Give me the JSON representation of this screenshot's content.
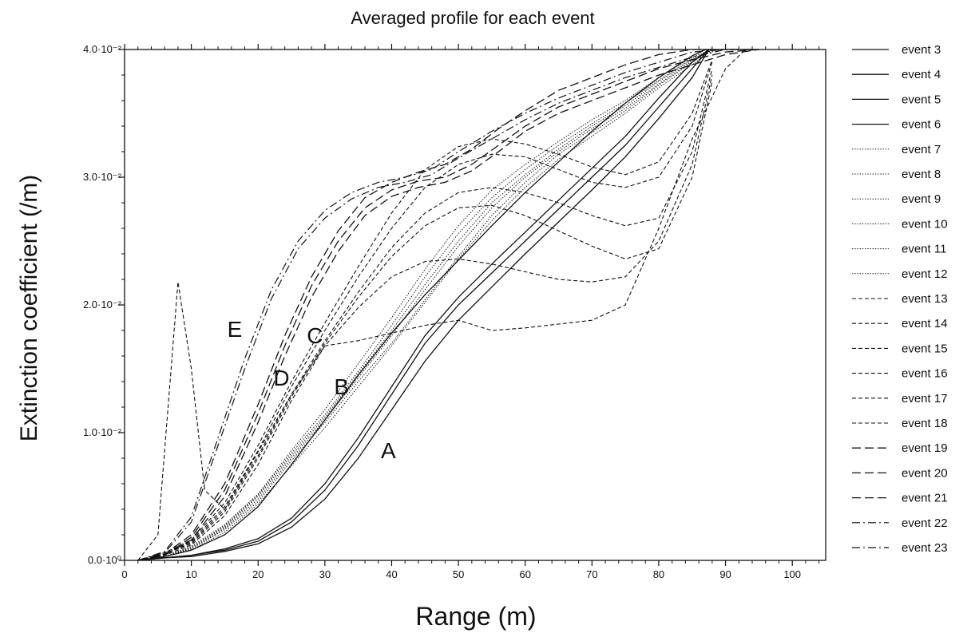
{
  "chart_data": {
    "type": "line",
    "title": "Averaged profile for each event",
    "xlabel": "Range (m)",
    "ylabel": "Extinction coefficient (/m)",
    "xlim": [
      0,
      105
    ],
    "ylim": [
      0,
      0.04
    ],
    "x_ticks": [
      0,
      10,
      20,
      30,
      40,
      50,
      60,
      70,
      80,
      90,
      100
    ],
    "x_tick_labels": [
      "0",
      "10",
      "20",
      "30",
      "40",
      "50",
      "60",
      "70",
      "80",
      "90",
      "100"
    ],
    "y_ticks": [
      0,
      0.01,
      0.02,
      0.03,
      0.04
    ],
    "y_tick_labels": [
      "0.0·10⁰",
      "1.0·10⁻²",
      "2.0·10⁻²",
      "3.0·10⁻²",
      "4.0·10⁻²"
    ],
    "grid": false,
    "legend_position": "right",
    "annotations": [
      {
        "text": "A",
        "x": 39.5,
        "y": 0.008
      },
      {
        "text": "B",
        "x": 32.5,
        "y": 0.013
      },
      {
        "text": "C",
        "x": 28.5,
        "y": 0.017
      },
      {
        "text": "D",
        "x": 23.5,
        "y": 0.0137
      },
      {
        "text": "E",
        "x": 16.5,
        "y": 0.0175
      }
    ],
    "series": [
      {
        "name": "event 3",
        "style": "solid",
        "x": [
          2,
          6,
          10,
          15,
          20,
          25,
          30,
          35,
          40,
          45,
          50,
          55,
          60,
          65,
          70,
          75,
          80,
          85,
          87.5
        ],
        "y": [
          0,
          0.0002,
          0.0004,
          0.0008,
          0.0015,
          0.003,
          0.0055,
          0.009,
          0.013,
          0.017,
          0.02,
          0.0225,
          0.025,
          0.0275,
          0.03,
          0.0325,
          0.0355,
          0.0385,
          0.04
        ]
      },
      {
        "name": "event 4",
        "style": "solid",
        "x": [
          2,
          6,
          10,
          15,
          20,
          25,
          30,
          35,
          40,
          45,
          50,
          55,
          60,
          65,
          70,
          75,
          80,
          85,
          87.5
        ],
        "y": [
          0,
          0.0002,
          0.0004,
          0.0009,
          0.0017,
          0.0033,
          0.006,
          0.0096,
          0.0136,
          0.0176,
          0.0206,
          0.0232,
          0.0257,
          0.0282,
          0.0307,
          0.0332,
          0.0362,
          0.039,
          0.04
        ]
      },
      {
        "name": "event 5",
        "style": "solid",
        "x": [
          2,
          6,
          10,
          15,
          20,
          25,
          30,
          35,
          40,
          45,
          50,
          55,
          60,
          65,
          70,
          75,
          80,
          85,
          87.5
        ],
        "y": [
          0,
          0.0002,
          0.0003,
          0.0007,
          0.0013,
          0.0026,
          0.0048,
          0.008,
          0.0118,
          0.0156,
          0.0188,
          0.0214,
          0.024,
          0.0265,
          0.029,
          0.0316,
          0.0346,
          0.0378,
          0.04
        ]
      },
      {
        "name": "event 6",
        "style": "solid",
        "x": [
          2,
          6,
          10,
          15,
          20,
          25,
          30,
          35,
          40,
          45,
          50,
          55,
          60,
          65,
          70,
          75,
          80,
          85,
          87
        ],
        "y": [
          0,
          0.0003,
          0.0008,
          0.002,
          0.0042,
          0.0075,
          0.011,
          0.0145,
          0.0178,
          0.0208,
          0.0235,
          0.0262,
          0.0288,
          0.0312,
          0.0336,
          0.0358,
          0.0378,
          0.0395,
          0.04
        ]
      },
      {
        "name": "event 7",
        "style": "dotted",
        "x": [
          2,
          6,
          10,
          15,
          20,
          25,
          30,
          35,
          40,
          45,
          50,
          55,
          60,
          65,
          70,
          75,
          80,
          85,
          88
        ],
        "y": [
          0,
          0.0003,
          0.0009,
          0.0024,
          0.0046,
          0.0078,
          0.0108,
          0.014,
          0.017,
          0.0204,
          0.0238,
          0.027,
          0.0296,
          0.0318,
          0.0335,
          0.0352,
          0.0372,
          0.039,
          0.04
        ]
      },
      {
        "name": "event 8",
        "style": "dotted",
        "x": [
          2,
          6,
          10,
          15,
          20,
          25,
          30,
          35,
          40,
          45,
          50,
          55,
          60,
          65,
          70,
          75,
          80,
          85,
          88
        ],
        "y": [
          0,
          0.0003,
          0.001,
          0.0026,
          0.005,
          0.0082,
          0.0112,
          0.0146,
          0.018,
          0.0216,
          0.025,
          0.028,
          0.0302,
          0.0322,
          0.034,
          0.0356,
          0.0375,
          0.0392,
          0.04
        ]
      },
      {
        "name": "event 9",
        "style": "dotted",
        "x": [
          2,
          6,
          10,
          15,
          20,
          25,
          30,
          35,
          40,
          45,
          50,
          55,
          60,
          65,
          70,
          75,
          80,
          85,
          88
        ],
        "y": [
          0,
          0.0003,
          0.0008,
          0.0022,
          0.0044,
          0.0074,
          0.0104,
          0.0136,
          0.0168,
          0.0202,
          0.0236,
          0.0266,
          0.0292,
          0.0314,
          0.0332,
          0.035,
          0.037,
          0.0388,
          0.04
        ]
      },
      {
        "name": "event 10",
        "style": "dotted",
        "x": [
          2,
          6,
          10,
          15,
          20,
          25,
          30,
          35,
          40,
          45,
          50,
          55,
          60,
          65,
          70,
          75,
          80,
          85,
          88
        ],
        "y": [
          0,
          0.0003,
          0.0011,
          0.0028,
          0.0052,
          0.0086,
          0.0118,
          0.0154,
          0.019,
          0.0228,
          0.0262,
          0.029,
          0.031,
          0.0328,
          0.0345,
          0.036,
          0.0378,
          0.0394,
          0.04
        ]
      },
      {
        "name": "event 11",
        "style": "dotted",
        "x": [
          2,
          6,
          10,
          15,
          20,
          25,
          30,
          35,
          40,
          45,
          50,
          55,
          60,
          65,
          70,
          75,
          80,
          85,
          88
        ],
        "y": [
          0,
          0.0003,
          0.0009,
          0.0025,
          0.0048,
          0.008,
          0.011,
          0.0143,
          0.0176,
          0.0212,
          0.0246,
          0.0276,
          0.03,
          0.032,
          0.0338,
          0.0354,
          0.0373,
          0.0391,
          0.04
        ]
      },
      {
        "name": "event 12",
        "style": "dotted",
        "x": [
          2,
          6,
          10,
          15,
          20,
          25,
          30,
          35,
          40,
          45,
          50,
          55,
          60,
          65,
          70,
          75,
          80,
          85,
          89
        ],
        "y": [
          0,
          0.0003,
          0.001,
          0.0027,
          0.0051,
          0.0084,
          0.0114,
          0.0148,
          0.0184,
          0.0222,
          0.0256,
          0.0284,
          0.0306,
          0.0325,
          0.0342,
          0.0358,
          0.0376,
          0.0393,
          0.04
        ]
      },
      {
        "name": "event 13",
        "style": "dashed",
        "x": [
          2,
          5,
          8,
          10,
          12,
          15,
          20,
          25,
          30,
          35,
          40,
          45,
          50,
          55,
          60,
          65,
          70,
          75,
          80,
          85,
          90,
          93
        ],
        "y": [
          0,
          0.002,
          0.0218,
          0.015,
          0.0055,
          0.004,
          0.0085,
          0.013,
          0.0168,
          0.0172,
          0.0178,
          0.0184,
          0.0188,
          0.018,
          0.0182,
          0.0185,
          0.0188,
          0.02,
          0.026,
          0.033,
          0.0385,
          0.04
        ]
      },
      {
        "name": "event 14",
        "style": "dashed",
        "x": [
          2,
          6,
          10,
          15,
          20,
          25,
          30,
          35,
          40,
          45,
          50,
          55,
          60,
          65,
          70,
          75,
          80,
          85,
          88
        ],
        "y": [
          0,
          0.0004,
          0.0012,
          0.0035,
          0.0075,
          0.0125,
          0.0168,
          0.0198,
          0.0222,
          0.0234,
          0.0236,
          0.0232,
          0.0226,
          0.022,
          0.0218,
          0.0222,
          0.025,
          0.031,
          0.038
        ]
      },
      {
        "name": "event 15",
        "style": "dashed",
        "x": [
          2,
          6,
          10,
          15,
          20,
          25,
          30,
          35,
          40,
          45,
          50,
          55,
          60,
          65,
          70,
          75,
          80,
          85,
          88
        ],
        "y": [
          0,
          0.0005,
          0.0014,
          0.004,
          0.0082,
          0.013,
          0.0172,
          0.021,
          0.0245,
          0.0272,
          0.0288,
          0.0292,
          0.0288,
          0.028,
          0.027,
          0.0262,
          0.0268,
          0.032,
          0.0385
        ]
      },
      {
        "name": "event 16",
        "style": "dashed",
        "x": [
          2,
          6,
          10,
          15,
          20,
          25,
          30,
          35,
          40,
          45,
          50,
          55,
          60,
          65,
          70,
          75,
          80,
          85,
          88
        ],
        "y": [
          0,
          0.0005,
          0.0015,
          0.0042,
          0.0086,
          0.0136,
          0.018,
          0.0222,
          0.026,
          0.0292,
          0.031,
          0.0318,
          0.0316,
          0.0306,
          0.0296,
          0.0292,
          0.03,
          0.034,
          0.039
        ]
      },
      {
        "name": "event 17",
        "style": "dashed",
        "x": [
          2,
          6,
          10,
          15,
          20,
          25,
          30,
          35,
          40,
          45,
          50,
          55,
          60,
          65,
          70,
          75,
          80,
          85,
          88
        ],
        "y": [
          0,
          0.0005,
          0.0013,
          0.0038,
          0.008,
          0.0128,
          0.017,
          0.0206,
          0.0238,
          0.0262,
          0.0276,
          0.0278,
          0.027,
          0.0258,
          0.0246,
          0.0236,
          0.0244,
          0.03,
          0.0375
        ]
      },
      {
        "name": "event 18",
        "style": "dashed",
        "x": [
          2,
          6,
          10,
          15,
          20,
          25,
          30,
          35,
          40,
          45,
          50,
          55,
          60,
          65,
          70,
          75,
          80,
          85,
          88
        ],
        "y": [
          0,
          0.0006,
          0.0016,
          0.0045,
          0.009,
          0.014,
          0.0186,
          0.023,
          0.0272,
          0.0306,
          0.0324,
          0.033,
          0.0326,
          0.0318,
          0.0308,
          0.0302,
          0.0312,
          0.035,
          0.0392
        ]
      },
      {
        "name": "event 19",
        "style": "longdash",
        "x": [
          2,
          6,
          10,
          15,
          20,
          24,
          28,
          32,
          36,
          40,
          44,
          48,
          52,
          56,
          60,
          65,
          70,
          75,
          80,
          85,
          90,
          95
        ],
        "y": [
          0,
          0.0004,
          0.0018,
          0.0055,
          0.0115,
          0.0168,
          0.0215,
          0.025,
          0.0276,
          0.029,
          0.0297,
          0.03,
          0.031,
          0.0325,
          0.034,
          0.0355,
          0.0365,
          0.0375,
          0.0385,
          0.0392,
          0.0398,
          0.04
        ]
      },
      {
        "name": "event 20",
        "style": "longdash",
        "x": [
          2,
          6,
          10,
          15,
          20,
          24,
          28,
          32,
          36,
          40,
          44,
          48,
          52,
          56,
          60,
          65,
          70,
          75,
          80,
          85,
          90,
          95
        ],
        "y": [
          0,
          0.0004,
          0.0016,
          0.005,
          0.0108,
          0.016,
          0.0206,
          0.0242,
          0.027,
          0.0285,
          0.0292,
          0.0296,
          0.0305,
          0.032,
          0.0336,
          0.035,
          0.036,
          0.037,
          0.038,
          0.0388,
          0.0396,
          0.04
        ]
      },
      {
        "name": "event 21",
        "style": "longdash",
        "x": [
          2,
          6,
          10,
          15,
          20,
          24,
          28,
          32,
          36,
          40,
          44,
          48,
          52,
          56,
          60,
          65,
          70,
          75,
          80,
          85,
          90,
          95
        ],
        "y": [
          0,
          0.0005,
          0.002,
          0.006,
          0.0122,
          0.0176,
          0.0222,
          0.0258,
          0.0284,
          0.0296,
          0.0304,
          0.031,
          0.0322,
          0.0338,
          0.0352,
          0.0368,
          0.0378,
          0.0388,
          0.0396,
          0.04,
          0.04,
          0.04
        ]
      },
      {
        "name": "event 22",
        "style": "dashdot",
        "x": [
          2,
          6,
          10,
          14,
          18,
          22,
          26,
          30,
          34,
          38,
          42,
          46,
          50,
          55,
          60,
          65,
          70,
          75,
          80,
          85,
          90,
          95
        ],
        "y": [
          0,
          0.0006,
          0.003,
          0.009,
          0.015,
          0.0205,
          0.0244,
          0.0268,
          0.0283,
          0.0292,
          0.0296,
          0.0302,
          0.0315,
          0.033,
          0.0345,
          0.0358,
          0.0368,
          0.0378,
          0.0386,
          0.0394,
          0.04,
          0.04
        ]
      },
      {
        "name": "event 23",
        "style": "dashdot",
        "x": [
          2,
          6,
          10,
          14,
          18,
          22,
          26,
          30,
          34,
          38,
          42,
          46,
          50,
          55,
          60,
          65,
          70,
          75,
          80,
          85,
          90,
          95
        ],
        "y": [
          0,
          0.0007,
          0.0034,
          0.0096,
          0.0158,
          0.0212,
          0.025,
          0.0274,
          0.0288,
          0.0296,
          0.03,
          0.0306,
          0.032,
          0.0336,
          0.035,
          0.0362,
          0.0372,
          0.0382,
          0.039,
          0.0398,
          0.04,
          0.04
        ]
      }
    ]
  }
}
